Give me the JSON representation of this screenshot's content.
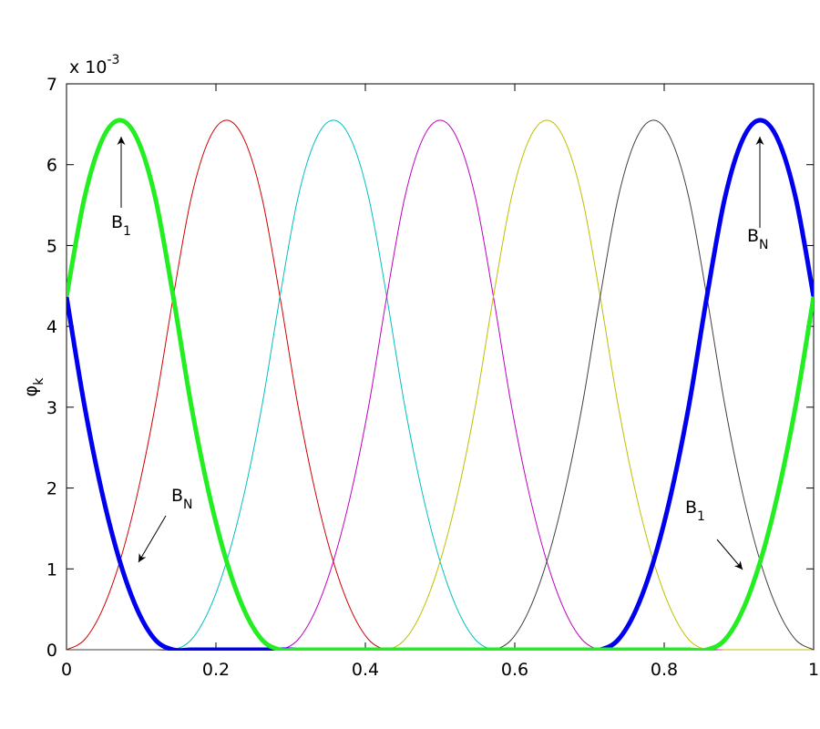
{
  "chart_data": {
    "type": "line",
    "ylabel": {
      "text": "φ",
      "subscript": "k"
    },
    "multiplier": {
      "text": "x 10",
      "superscript": "-3"
    },
    "xlim": [
      0,
      1
    ],
    "ylim": [
      0,
      7
    ],
    "xticks": [
      0,
      0.2,
      0.4,
      0.6,
      0.8,
      1
    ],
    "yticks": [
      0,
      1,
      2,
      3,
      4,
      5,
      6,
      7
    ],
    "x": [
      0,
      0.0238,
      0.0476,
      0.0714,
      0.0952,
      0.119,
      0.1429,
      0.1667,
      0.1905,
      0.2143,
      0.2381,
      0.2619,
      0.2857,
      0.3095,
      0.3333,
      0.3571,
      0.381,
      0.4048,
      0.4286,
      0.4524,
      0.4762,
      0.5,
      0.5238,
      0.5476,
      0.5714,
      0.5952,
      0.619,
      0.6429,
      0.6667,
      0.6905,
      0.7143,
      0.7381,
      0.7619,
      0.7857,
      0.8095,
      0.8333,
      0.8571,
      0.881,
      0.9048,
      0.9286,
      0.9524,
      0.9762,
      1
    ],
    "series": [
      {
        "color": "#d00000",
        "width": 1,
        "values": [
          0,
          0.121,
          0.485,
          1.092,
          1.941,
          3.032,
          4.367,
          5.58,
          6.307,
          6.55,
          6.307,
          5.58,
          4.367,
          3.032,
          1.941,
          1.092,
          0.485,
          0.121,
          0,
          0,
          0,
          0,
          0,
          0,
          0,
          0,
          0,
          0,
          0,
          0,
          0,
          0,
          0,
          0,
          0,
          0,
          0,
          0,
          0,
          0,
          0,
          0,
          0
        ]
      },
      {
        "color": "#00bfbf",
        "width": 1,
        "values": [
          0,
          0,
          0,
          0,
          0,
          0,
          0,
          0.121,
          0.485,
          1.092,
          1.941,
          3.032,
          4.367,
          5.58,
          6.307,
          6.55,
          6.307,
          5.58,
          4.367,
          3.032,
          1.941,
          1.092,
          0.485,
          0.121,
          0,
          0,
          0,
          0,
          0,
          0,
          0,
          0,
          0,
          0,
          0,
          0,
          0,
          0,
          0,
          0,
          0,
          0,
          0
        ]
      },
      {
        "color": "#bf00bf",
        "width": 1,
        "values": [
          0,
          0,
          0,
          0,
          0,
          0,
          0,
          0,
          0,
          0,
          0,
          0,
          0,
          0.121,
          0.485,
          1.092,
          1.941,
          3.032,
          4.367,
          5.58,
          6.307,
          6.55,
          6.307,
          5.58,
          4.367,
          3.032,
          1.941,
          1.092,
          0.485,
          0.121,
          0,
          0,
          0,
          0,
          0,
          0,
          0,
          0,
          0,
          0,
          0,
          0,
          0
        ]
      },
      {
        "color": "#bfbf00",
        "width": 1,
        "values": [
          0,
          0,
          0,
          0,
          0,
          0,
          0,
          0,
          0,
          0,
          0,
          0,
          0,
          0,
          0,
          0,
          0,
          0,
          0,
          0.121,
          0.485,
          1.092,
          1.941,
          3.032,
          4.367,
          5.58,
          6.307,
          6.55,
          6.307,
          5.58,
          4.367,
          3.032,
          1.941,
          1.092,
          0.485,
          0.121,
          0,
          0,
          0,
          0,
          0,
          0,
          0
        ]
      },
      {
        "color": "#404040",
        "width": 1,
        "values": [
          0,
          0,
          0,
          0,
          0,
          0,
          0,
          0,
          0,
          0,
          0,
          0,
          0,
          0,
          0,
          0,
          0,
          0,
          0,
          0,
          0,
          0,
          0,
          0,
          0,
          0.121,
          0.485,
          1.092,
          1.941,
          3.032,
          4.367,
          5.58,
          6.307,
          6.55,
          6.307,
          5.58,
          4.367,
          3.032,
          1.941,
          1.092,
          0.485,
          0.121,
          0
        ]
      },
      {
        "color": "#0000ee",
        "width": 5,
        "values": [
          4.367,
          3.032,
          1.941,
          1.092,
          0.485,
          0.121,
          0,
          0,
          0,
          0,
          0,
          0,
          0,
          0,
          0,
          0,
          0,
          0,
          0,
          0,
          0,
          0,
          0,
          0,
          0,
          0,
          0,
          0,
          0,
          0,
          0,
          0.121,
          0.485,
          1.092,
          1.941,
          3.032,
          4.367,
          5.58,
          6.307,
          6.55,
          6.307,
          5.58,
          4.367
        ]
      },
      {
        "color": "#22ee22",
        "width": 5,
        "values": [
          4.367,
          5.58,
          6.307,
          6.55,
          6.307,
          5.58,
          4.367,
          3.032,
          1.941,
          1.092,
          0.485,
          0.121,
          0,
          0,
          0,
          0,
          0,
          0,
          0,
          0,
          0,
          0,
          0,
          0,
          0,
          0,
          0,
          0,
          0,
          0,
          0,
          0,
          0,
          0,
          0,
          0,
          0,
          0.121,
          0.485,
          1.092,
          1.941,
          3.032,
          4.367
        ]
      }
    ],
    "annotations": [
      {
        "text": "B",
        "subscript": "1"
      },
      {
        "text": "B",
        "subscript": "N"
      },
      {
        "text": "B",
        "subscript": "N"
      },
      {
        "text": "B",
        "subscript": "1"
      }
    ]
  }
}
